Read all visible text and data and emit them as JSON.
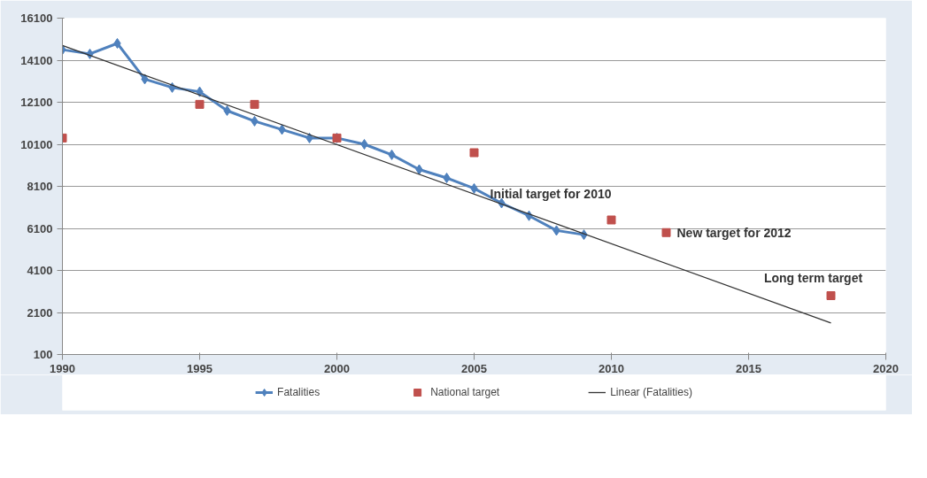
{
  "chart_data": {
    "type": "line",
    "x": [
      1990,
      1991,
      1992,
      1993,
      1994,
      1995,
      1996,
      1997,
      1998,
      1999,
      2000,
      2001,
      2002,
      2003,
      2004,
      2005,
      2006,
      2007,
      2008,
      2009
    ],
    "series": [
      {
        "name": "Fatalities",
        "marker": "diamond",
        "color": "#4f81bd",
        "values": [
          14600,
          14400,
          14900,
          13200,
          12800,
          12600,
          11700,
          11200,
          10800,
          10400,
          10400,
          10100,
          9600,
          8900,
          8500,
          8000,
          7300,
          6700,
          6000,
          5800
        ]
      },
      {
        "name": "National target",
        "type": "scatter",
        "marker": "square",
        "color": "#c0504d",
        "x": [
          1990,
          1995,
          1997,
          2000,
          2005,
          2010,
          2012,
          2018
        ],
        "values": [
          10400,
          12000,
          12000,
          10400,
          9700,
          6500,
          5900,
          2900
        ]
      },
      {
        "name": "Linear (Fatalities)",
        "marker": "none",
        "color": "#333333",
        "x": [
          1990,
          2018
        ],
        "values": [
          14800,
          1600
        ]
      }
    ],
    "annotations": [
      {
        "text": "Initial target for 2010",
        "x": 2010,
        "y": 6500
      },
      {
        "text": "New target for 2012",
        "x": 2012,
        "y": 5900
      },
      {
        "text": "Long term target",
        "x": 2018,
        "y": 2900
      }
    ],
    "xlim": [
      1990,
      2020
    ],
    "xticks": [
      1990,
      1995,
      2000,
      2005,
      2010,
      2015,
      2020
    ],
    "ylim": [
      100,
      16100
    ],
    "yticks": [
      100,
      2100,
      4100,
      6100,
      8100,
      10100,
      12100,
      14100,
      16100
    ],
    "grid": "y",
    "legend": "bottom"
  }
}
